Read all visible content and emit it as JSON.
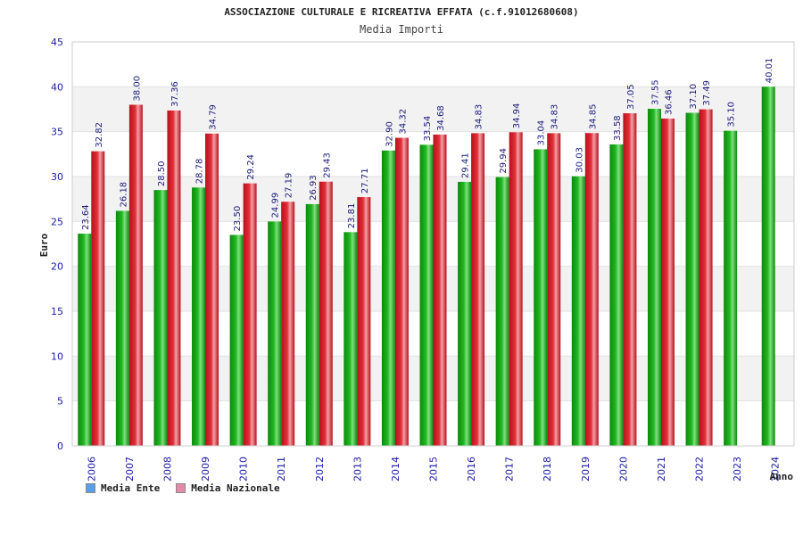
{
  "chart_data": {
    "type": "bar",
    "title": "ASSOCIAZIONE CULTURALE E RICREATIVA EFFATA (c.f.91012680608)",
    "subtitle": "Media Importi",
    "xlabel": "Anno",
    "ylabel": "Euro",
    "ylim": [
      0,
      45
    ],
    "yticks": [
      "0",
      "5",
      "10",
      "15",
      "20",
      "25",
      "30",
      "35",
      "40",
      "45"
    ],
    "categories": [
      "2006",
      "2007",
      "2008",
      "2009",
      "2010",
      "2011",
      "2012",
      "2013",
      "2014",
      "2015",
      "2016",
      "2017",
      "2018",
      "2019",
      "2020",
      "2021",
      "2022",
      "2023",
      "2024"
    ],
    "series": [
      {
        "name": "Media Ente",
        "color": "#22b822",
        "legend_color": "#5b9ee8",
        "values": [
          23.64,
          26.18,
          28.5,
          28.78,
          23.5,
          24.99,
          26.93,
          23.81,
          32.9,
          33.54,
          29.41,
          29.94,
          33.04,
          30.03,
          33.58,
          37.55,
          37.1,
          35.1,
          40.01
        ],
        "labels": [
          "23.64",
          "26.18",
          "28.50",
          "28.78",
          "23.50",
          "24.99",
          "26.93",
          "23.81",
          "32.90",
          "33.54",
          "29.41",
          "29.94",
          "33.04",
          "30.03",
          "33.58",
          "37.55",
          "37.10",
          "35.10",
          "40.01"
        ]
      },
      {
        "name": "Media Nazionale",
        "color": "#e0303a",
        "legend_color": "#e58aa8",
        "values": [
          32.82,
          38.0,
          37.36,
          34.79,
          29.24,
          27.19,
          29.43,
          27.71,
          34.32,
          34.68,
          34.83,
          34.94,
          34.83,
          34.85,
          37.05,
          36.46,
          37.49,
          null,
          null
        ],
        "labels": [
          "32.82",
          "38.00",
          "37.36",
          "34.79",
          "29.24",
          "27.19",
          "29.43",
          "27.71",
          "34.32",
          "34.68",
          "34.83",
          "34.94",
          "34.83",
          "34.85",
          "37.05",
          "36.46",
          "37.49",
          null,
          null
        ]
      }
    ],
    "grid": true,
    "legend_position": "bottom-left"
  }
}
